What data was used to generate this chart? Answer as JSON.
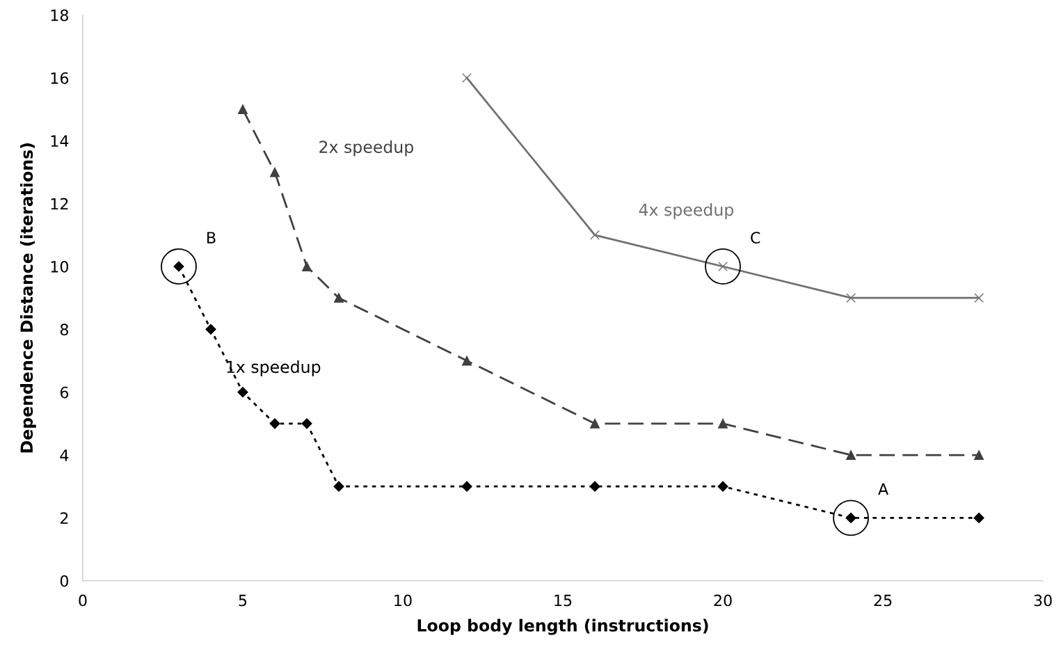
{
  "chart_data": {
    "type": "line",
    "xlabel": "Loop body length (instructions)",
    "ylabel": "Dependence Distance (iterations)",
    "xlim": [
      0,
      30
    ],
    "xticks": [
      0,
      5,
      10,
      15,
      20,
      25,
      30
    ],
    "ylim": [
      0,
      18
    ],
    "yticks": [
      0,
      2,
      4,
      6,
      8,
      10,
      12,
      14,
      16,
      18
    ],
    "grid": false,
    "legend": false,
    "series": [
      {
        "name": "1x speedup",
        "color": "#000000",
        "marker": "diamond",
        "line_style": "dotted",
        "x": [
          3,
          4,
          5,
          6,
          7,
          8,
          12,
          16,
          20,
          24,
          28
        ],
        "values": [
          10,
          8,
          6,
          5,
          5,
          3,
          3,
          3,
          3,
          2,
          2
        ]
      },
      {
        "name": "2x speedup",
        "color": "#404040",
        "marker": "triangle",
        "line_style": "dashed",
        "x": [
          5,
          6,
          7,
          8,
          12,
          16,
          20,
          24,
          28
        ],
        "values": [
          15,
          13,
          10,
          9,
          7,
          5,
          5,
          4,
          4
        ]
      },
      {
        "name": "4x speedup",
        "color": "#707070",
        "marker": "cross",
        "line_style": "solid",
        "x": [
          12,
          16,
          20,
          24,
          28
        ],
        "values": [
          16,
          11,
          10,
          9,
          9
        ]
      }
    ],
    "annotations": [
      {
        "text": "A",
        "x": 24,
        "y": 2
      },
      {
        "text": "B",
        "x": 3,
        "y": 10
      },
      {
        "text": "C",
        "x": 20,
        "y": 10
      }
    ]
  }
}
